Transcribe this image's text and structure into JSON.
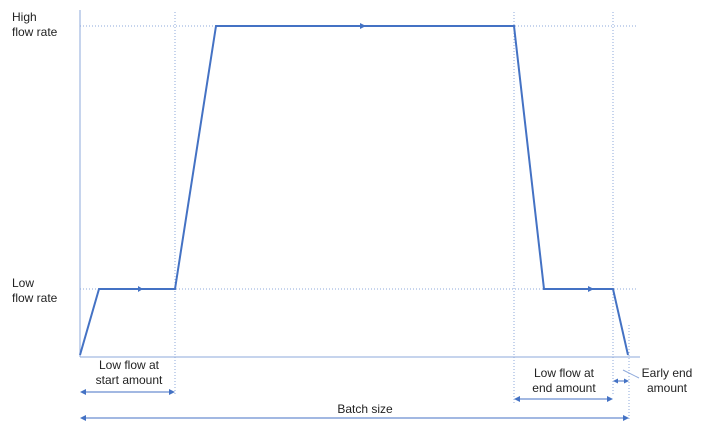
{
  "colors": {
    "profile": "#4472C4",
    "guide": "#8EA9DB",
    "axis": "#8EA9DB",
    "text": "#222222"
  },
  "labels": {
    "high_line1": "High",
    "high_line2": "flow rate",
    "low_line1": "Low",
    "low_line2": "flow rate",
    "start_line1": "Low flow at",
    "start_line2": "start amount",
    "end_line1": "Low flow at",
    "end_line2": "end amount",
    "early_line1": "Early end",
    "early_line2": "amount",
    "batch": "Batch size"
  }
}
